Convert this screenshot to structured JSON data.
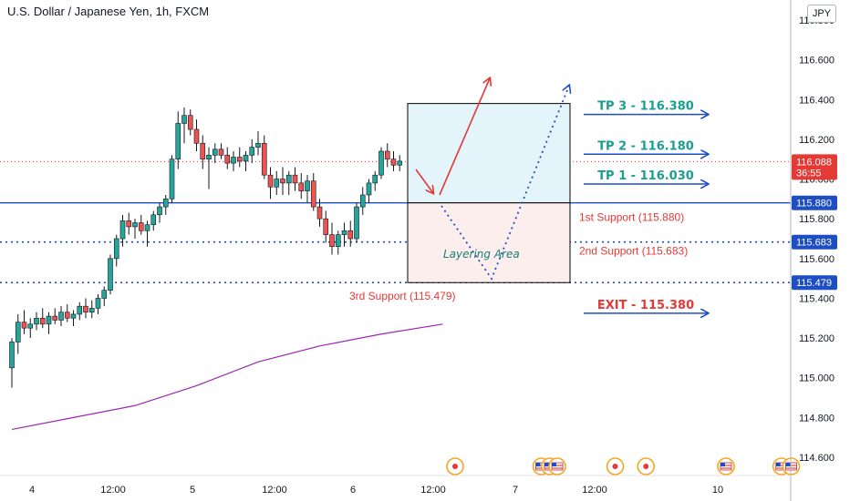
{
  "header": {
    "title": "U.S. Dollar / Japanese Yen, 1h, FXCM",
    "currency": "JPY"
  },
  "colors": {
    "up": "#26a69a",
    "down": "#ef5350",
    "support_line": "#1e4fc2",
    "ma_line": "#9c27b0",
    "tp_text": "#1a9e8f",
    "exit_text": "#e53935",
    "current_price": "#e53935"
  },
  "chart_data": {
    "type": "candlestick",
    "title": "U.S. Dollar / Japanese Yen, 1h, FXCM",
    "y_axis": {
      "range": [
        114.5,
        116.9
      ],
      "ticks": [
        "116.800",
        "116.600",
        "116.400",
        "116.200",
        "116.000",
        "115.800",
        "115.600",
        "115.400",
        "115.200",
        "115.000",
        "114.800",
        "114.600"
      ]
    },
    "x_axis": {
      "ticks": [
        "4",
        "12:00",
        "5",
        "12:00",
        "6",
        "12:00",
        "7",
        "12:00",
        "10"
      ],
      "range": [
        0,
        94
      ]
    },
    "current_price": {
      "value": "116.088",
      "countdown": "36:55"
    },
    "ohlc": [
      [
        115.05,
        115.2,
        114.95,
        115.18
      ],
      [
        115.18,
        115.32,
        115.12,
        115.28
      ],
      [
        115.28,
        115.34,
        115.22,
        115.25
      ],
      [
        115.25,
        115.3,
        115.2,
        115.27
      ],
      [
        115.27,
        115.33,
        115.24,
        115.3
      ],
      [
        115.3,
        115.35,
        115.25,
        115.27
      ],
      [
        115.27,
        115.33,
        115.22,
        115.31
      ],
      [
        115.31,
        115.35,
        115.27,
        115.29
      ],
      [
        115.29,
        115.36,
        115.26,
        115.33
      ],
      [
        115.33,
        115.37,
        115.28,
        115.3
      ],
      [
        115.3,
        115.34,
        115.26,
        115.32
      ],
      [
        115.32,
        115.38,
        115.29,
        115.36
      ],
      [
        115.36,
        115.4,
        115.3,
        115.33
      ],
      [
        115.33,
        115.39,
        115.3,
        115.35
      ],
      [
        115.35,
        115.42,
        115.32,
        115.4
      ],
      [
        115.4,
        115.46,
        115.36,
        115.44
      ],
      [
        115.44,
        115.62,
        115.42,
        115.6
      ],
      [
        115.6,
        115.72,
        115.56,
        115.7
      ],
      [
        115.7,
        115.82,
        115.66,
        115.79
      ],
      [
        115.79,
        115.83,
        115.72,
        115.76
      ],
      [
        115.76,
        115.8,
        115.7,
        115.78
      ],
      [
        115.78,
        115.82,
        115.72,
        115.74
      ],
      [
        115.74,
        115.79,
        115.66,
        115.77
      ],
      [
        115.77,
        115.84,
        115.74,
        115.82
      ],
      [
        115.82,
        115.88,
        115.78,
        115.86
      ],
      [
        115.86,
        115.92,
        115.82,
        115.9
      ],
      [
        115.9,
        116.12,
        115.88,
        116.1
      ],
      [
        116.1,
        116.34,
        116.05,
        116.28
      ],
      [
        116.28,
        116.36,
        116.18,
        116.32
      ],
      [
        116.32,
        116.35,
        116.22,
        116.25
      ],
      [
        116.25,
        116.3,
        116.14,
        116.18
      ],
      [
        116.18,
        116.22,
        116.05,
        116.1
      ],
      [
        116.1,
        116.16,
        115.95,
        116.12
      ],
      [
        116.12,
        116.18,
        116.08,
        116.15
      ],
      [
        116.15,
        116.18,
        116.1,
        116.12
      ],
      [
        116.12,
        116.16,
        116.05,
        116.08
      ],
      [
        116.08,
        116.14,
        116.04,
        116.11
      ],
      [
        116.11,
        116.16,
        116.06,
        116.09
      ],
      [
        116.09,
        116.14,
        116.04,
        116.12
      ],
      [
        116.12,
        116.2,
        116.08,
        116.16
      ],
      [
        116.16,
        116.24,
        116.12,
        116.18
      ],
      [
        116.18,
        116.22,
        116.0,
        116.02
      ],
      [
        116.02,
        116.06,
        115.9,
        115.96
      ],
      [
        115.96,
        116.04,
        115.92,
        116.0
      ],
      [
        116.0,
        116.06,
        115.92,
        115.98
      ],
      [
        115.98,
        116.04,
        115.92,
        116.02
      ],
      [
        116.02,
        116.06,
        115.94,
        115.98
      ],
      [
        115.98,
        116.03,
        115.9,
        115.94
      ],
      [
        115.94,
        116.02,
        115.88,
        115.99
      ],
      [
        115.99,
        116.03,
        115.84,
        115.86
      ],
      [
        115.86,
        115.9,
        115.76,
        115.8
      ],
      [
        115.8,
        115.84,
        115.68,
        115.72
      ],
      [
        115.72,
        115.78,
        115.62,
        115.66
      ],
      [
        115.66,
        115.74,
        115.62,
        115.72
      ],
      [
        115.72,
        115.78,
        115.66,
        115.74
      ],
      [
        115.74,
        115.79,
        115.66,
        115.7
      ],
      [
        115.7,
        115.88,
        115.68,
        115.86
      ],
      [
        115.86,
        115.96,
        115.82,
        115.92
      ],
      [
        115.92,
        116.0,
        115.88,
        115.98
      ],
      [
        115.98,
        116.04,
        115.94,
        116.02
      ],
      [
        116.02,
        116.16,
        116.0,
        116.14
      ],
      [
        116.14,
        116.18,
        116.06,
        116.1
      ],
      [
        116.1,
        116.14,
        116.04,
        116.07
      ],
      [
        116.07,
        116.12,
        116.04,
        116.09
      ]
    ],
    "moving_average": [
      [
        0,
        114.74
      ],
      [
        10,
        114.8
      ],
      [
        20,
        114.86
      ],
      [
        30,
        114.96
      ],
      [
        40,
        115.08
      ],
      [
        50,
        115.16
      ],
      [
        60,
        115.22
      ],
      [
        70,
        115.27
      ]
    ],
    "horizontal_lines": [
      {
        "name": "1st Support",
        "value": 115.88,
        "style": "solid"
      },
      {
        "name": "2nd Support",
        "value": 115.683,
        "style": "dotted"
      },
      {
        "name": "3rd Support",
        "value": 115.479,
        "style": "dotted"
      },
      {
        "name": "Current",
        "value": 116.088,
        "style": "dotted-red"
      }
    ],
    "price_tags": [
      {
        "value": "115.880",
        "price": 115.88
      },
      {
        "value": "115.683",
        "price": 115.683
      },
      {
        "value": "115.479",
        "price": 115.479
      }
    ]
  },
  "annotations": {
    "tp3": "TP 3 - 116.380",
    "tp2": "TP 2 - 116.180",
    "tp1": "TP 1 - 116.030",
    "exit": "EXIT - 115.380",
    "support1": "1st Support (115.880)",
    "support2": "2nd Support (115.683)",
    "support3": "3rd Support (115.479)",
    "layering": "Layering Area"
  },
  "events": [
    {
      "icon": "event-red-dot-icon",
      "x": 72
    },
    {
      "icon": "us-flag-icon",
      "x": 86
    },
    {
      "icon": "us-flag-icon",
      "x": 87.4
    },
    {
      "icon": "us-flag-icon",
      "x": 88.6
    },
    {
      "icon": "event-red-dot-icon",
      "x": 98
    },
    {
      "icon": "event-red-dot-icon",
      "x": 103
    },
    {
      "icon": "us-flag-icon",
      "x": 116
    },
    {
      "icon": "us-flag-icon",
      "x": 125
    },
    {
      "icon": "us-flag-icon",
      "x": 126.6
    }
  ]
}
